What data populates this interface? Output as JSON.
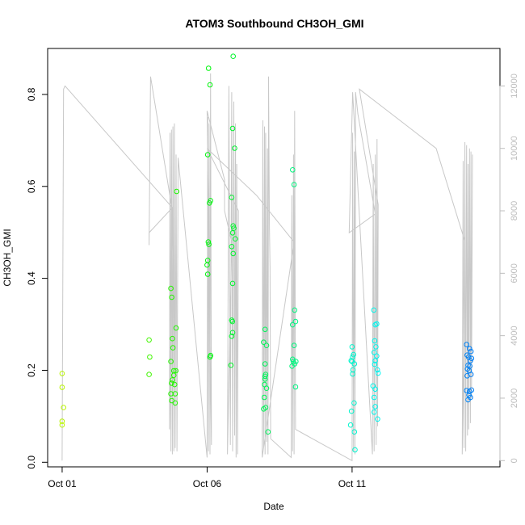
{
  "chart_data": {
    "type": "scatter",
    "title": "ATOM3 Southbound CH3OH_GMI",
    "xlabel": "Date",
    "ylabel": "CH3OH_GMI",
    "xlim": [
      -0.5,
      15.1
    ],
    "ylim": [
      -0.01,
      0.9
    ],
    "y2lim": [
      -200,
      13200
    ],
    "x_ticks": [
      {
        "x": 0,
        "label": "Oct 01"
      },
      {
        "x": 5,
        "label": "Oct 06"
      },
      {
        "x": 10,
        "label": "Oct 11"
      }
    ],
    "y_ticks": [
      0.0,
      0.2,
      0.4,
      0.6,
      0.8
    ],
    "y_tick_labels": [
      "0.0",
      "0.2",
      "0.4",
      "0.6",
      "0.8"
    ],
    "y2_ticks": [
      0,
      2000,
      4000,
      6000,
      8000,
      10000,
      12000
    ],
    "y2_tick_labels": [
      "0",
      "2000",
      "4000",
      "6000",
      "8000",
      "10000",
      "12000"
    ],
    "grid": false,
    "series": [
      {
        "marker": "circle-open",
        "color_by": "date",
        "points": [
          [
            0.0,
            0.193
          ],
          [
            0.0,
            0.163
          ],
          [
            0.05,
            0.119
          ],
          [
            0.0,
            0.089
          ],
          [
            0.0,
            0.081
          ],
          [
            3.0,
            0.266
          ],
          [
            3.02,
            0.229
          ],
          [
            3.0,
            0.191
          ],
          [
            3.75,
            0.378
          ],
          [
            3.78,
            0.359
          ],
          [
            3.8,
            0.269
          ],
          [
            3.82,
            0.249
          ],
          [
            3.75,
            0.219
          ],
          [
            3.85,
            0.199
          ],
          [
            3.8,
            0.179
          ],
          [
            3.77,
            0.172
          ],
          [
            3.88,
            0.169
          ],
          [
            3.9,
            0.149
          ],
          [
            3.78,
            0.134
          ],
          [
            3.9,
            0.129
          ],
          [
            3.93,
            0.292
          ],
          [
            3.95,
            0.589
          ],
          [
            3.75,
            0.149
          ],
          [
            3.85,
            0.189
          ],
          [
            3.92,
            0.199
          ],
          [
            5.05,
            0.857
          ],
          [
            5.1,
            0.821
          ],
          [
            5.02,
            0.669
          ],
          [
            5.12,
            0.569
          ],
          [
            5.08,
            0.564
          ],
          [
            5.04,
            0.479
          ],
          [
            5.06,
            0.474
          ],
          [
            5.02,
            0.439
          ],
          [
            5.0,
            0.429
          ],
          [
            5.02,
            0.409
          ],
          [
            5.1,
            0.229
          ],
          [
            5.12,
            0.232
          ],
          [
            5.9,
            0.883
          ],
          [
            5.88,
            0.726
          ],
          [
            5.95,
            0.683
          ],
          [
            5.85,
            0.576
          ],
          [
            5.9,
            0.514
          ],
          [
            5.92,
            0.509
          ],
          [
            5.88,
            0.499
          ],
          [
            5.97,
            0.486
          ],
          [
            5.85,
            0.469
          ],
          [
            5.9,
            0.454
          ],
          [
            5.88,
            0.389
          ],
          [
            5.85,
            0.309
          ],
          [
            5.87,
            0.306
          ],
          [
            5.88,
            0.282
          ],
          [
            5.85,
            0.274
          ],
          [
            5.82,
            0.211
          ],
          [
            7.0,
            0.289
          ],
          [
            6.95,
            0.261
          ],
          [
            7.05,
            0.254
          ],
          [
            7.0,
            0.214
          ],
          [
            7.02,
            0.191
          ],
          [
            7.0,
            0.187
          ],
          [
            7.0,
            0.181
          ],
          [
            6.98,
            0.169
          ],
          [
            7.05,
            0.161
          ],
          [
            6.97,
            0.141
          ],
          [
            7.02,
            0.119
          ],
          [
            6.95,
            0.116
          ],
          [
            7.1,
            0.066
          ],
          [
            7.95,
            0.636
          ],
          [
            8.0,
            0.604
          ],
          [
            8.02,
            0.331
          ],
          [
            7.95,
            0.299
          ],
          [
            8.05,
            0.306
          ],
          [
            8.0,
            0.254
          ],
          [
            7.95,
            0.224
          ],
          [
            7.97,
            0.219
          ],
          [
            8.02,
            0.214
          ],
          [
            8.06,
            0.219
          ],
          [
            8.05,
            0.164
          ],
          [
            7.93,
            0.209
          ],
          [
            10.0,
            0.251
          ],
          [
            10.05,
            0.234
          ],
          [
            10.02,
            0.229
          ],
          [
            9.97,
            0.221
          ],
          [
            10.0,
            0.219
          ],
          [
            10.08,
            0.214
          ],
          [
            10.03,
            0.201
          ],
          [
            10.07,
            0.129
          ],
          [
            9.98,
            0.111
          ],
          [
            9.95,
            0.081
          ],
          [
            10.08,
            0.066
          ],
          [
            10.1,
            0.027
          ],
          [
            10.02,
            0.192
          ],
          [
            10.75,
            0.331
          ],
          [
            10.85,
            0.301
          ],
          [
            10.8,
            0.299
          ],
          [
            10.78,
            0.264
          ],
          [
            10.82,
            0.251
          ],
          [
            10.76,
            0.239
          ],
          [
            10.85,
            0.231
          ],
          [
            10.8,
            0.221
          ],
          [
            10.78,
            0.213
          ],
          [
            10.87,
            0.201
          ],
          [
            10.9,
            0.194
          ],
          [
            10.72,
            0.166
          ],
          [
            10.8,
            0.159
          ],
          [
            10.76,
            0.141
          ],
          [
            10.8,
            0.121
          ],
          [
            10.76,
            0.109
          ],
          [
            10.88,
            0.094
          ],
          [
            13.95,
            0.256
          ],
          [
            14.05,
            0.247
          ],
          [
            14.1,
            0.241
          ],
          [
            13.97,
            0.233
          ],
          [
            14.02,
            0.229
          ],
          [
            14.12,
            0.226
          ],
          [
            14.08,
            0.221
          ],
          [
            14.0,
            0.211
          ],
          [
            14.06,
            0.209
          ],
          [
            13.98,
            0.203
          ],
          [
            14.04,
            0.199
          ],
          [
            14.1,
            0.191
          ],
          [
            13.97,
            0.188
          ],
          [
            13.95,
            0.156
          ],
          [
            14.05,
            0.154
          ],
          [
            14.12,
            0.157
          ],
          [
            14.03,
            0.146
          ],
          [
            14.08,
            0.141
          ],
          [
            14.0,
            0.136
          ]
        ]
      }
    ],
    "altitude_trace": [
      [
        0.0,
        0
      ],
      [
        0.05,
        11900
      ],
      [
        0.1,
        12000
      ],
      [
        3.8,
        8100
      ],
      [
        3.0,
        7300
      ],
      [
        3.0,
        6900
      ],
      [
        3.05,
        12300
      ],
      [
        3.8,
        8000
      ],
      [
        3.7,
        1000
      ],
      [
        3.72,
        10500
      ],
      [
        3.75,
        300
      ],
      [
        3.77,
        10600
      ],
      [
        3.8,
        200
      ],
      [
        3.82,
        10700
      ],
      [
        3.85,
        300
      ],
      [
        3.87,
        10800
      ],
      [
        3.9,
        400
      ],
      [
        3.93,
        9800
      ],
      [
        3.96,
        300
      ],
      [
        4.0,
        9700
      ],
      [
        5.0,
        100
      ],
      [
        5.02,
        11000
      ],
      [
        5.05,
        300
      ],
      [
        5.07,
        10800
      ],
      [
        5.1,
        200
      ],
      [
        5.12,
        12400
      ],
      [
        5.15,
        500
      ],
      [
        5.0,
        11200
      ],
      [
        5.6,
        9000
      ],
      [
        5.6,
        8000
      ],
      [
        5.85,
        7000
      ],
      [
        5.7,
        200
      ],
      [
        5.75,
        12000
      ],
      [
        5.8,
        500
      ],
      [
        5.85,
        11800
      ],
      [
        5.88,
        300
      ],
      [
        5.92,
        11500
      ],
      [
        5.95,
        800
      ],
      [
        5.98,
        10800
      ],
      [
        6.0,
        100
      ],
      [
        6.02,
        9500
      ],
      [
        6.05,
        200
      ],
      [
        6.08,
        8000
      ],
      [
        5.0,
        10000
      ],
      [
        6.7,
        8500
      ],
      [
        8.0,
        7000
      ],
      [
        6.9,
        100
      ],
      [
        6.92,
        10900
      ],
      [
        6.95,
        400
      ],
      [
        6.98,
        10700
      ],
      [
        7.0,
        200
      ],
      [
        7.02,
        10500
      ],
      [
        7.05,
        600
      ],
      [
        7.08,
        10000
      ],
      [
        7.1,
        200
      ],
      [
        7.12,
        12300
      ],
      [
        7.15,
        7500
      ],
      [
        7.17,
        6200
      ],
      [
        7.19,
        700
      ],
      [
        7.9,
        100
      ],
      [
        7.92,
        8500
      ],
      [
        7.95,
        300
      ],
      [
        7.98,
        9800
      ],
      [
        8.0,
        200
      ],
      [
        8.02,
        11200
      ],
      [
        8.05,
        1000
      ],
      [
        10.0,
        0
      ],
      [
        10.02,
        10500
      ],
      [
        10.05,
        300
      ],
      [
        10.08,
        9900
      ],
      [
        10.1,
        200
      ],
      [
        10.12,
        11800
      ],
      [
        10.2,
        11100
      ],
      [
        10.8,
        7900
      ],
      [
        9.9,
        7300
      ],
      [
        10.02,
        11800
      ],
      [
        10.7,
        200
      ],
      [
        10.73,
        9500
      ],
      [
        10.76,
        300
      ],
      [
        10.8,
        9800
      ],
      [
        10.83,
        500
      ],
      [
        10.86,
        10300
      ],
      [
        10.88,
        1100
      ],
      [
        10.9,
        8200
      ],
      [
        10.25,
        11900
      ],
      [
        12.9,
        10000
      ],
      [
        13.9,
        7000
      ],
      [
        13.8,
        200
      ],
      [
        13.83,
        9600
      ],
      [
        13.86,
        400
      ],
      [
        13.89,
        10200
      ],
      [
        13.92,
        300
      ],
      [
        13.95,
        10100
      ],
      [
        13.98,
        800
      ],
      [
        14.0,
        9500
      ],
      [
        14.02,
        1000
      ],
      [
        14.05,
        10000
      ],
      [
        14.08,
        1200
      ],
      [
        14.1,
        9900
      ],
      [
        14.12,
        2000
      ],
      [
        14.15,
        9800
      ]
    ]
  }
}
